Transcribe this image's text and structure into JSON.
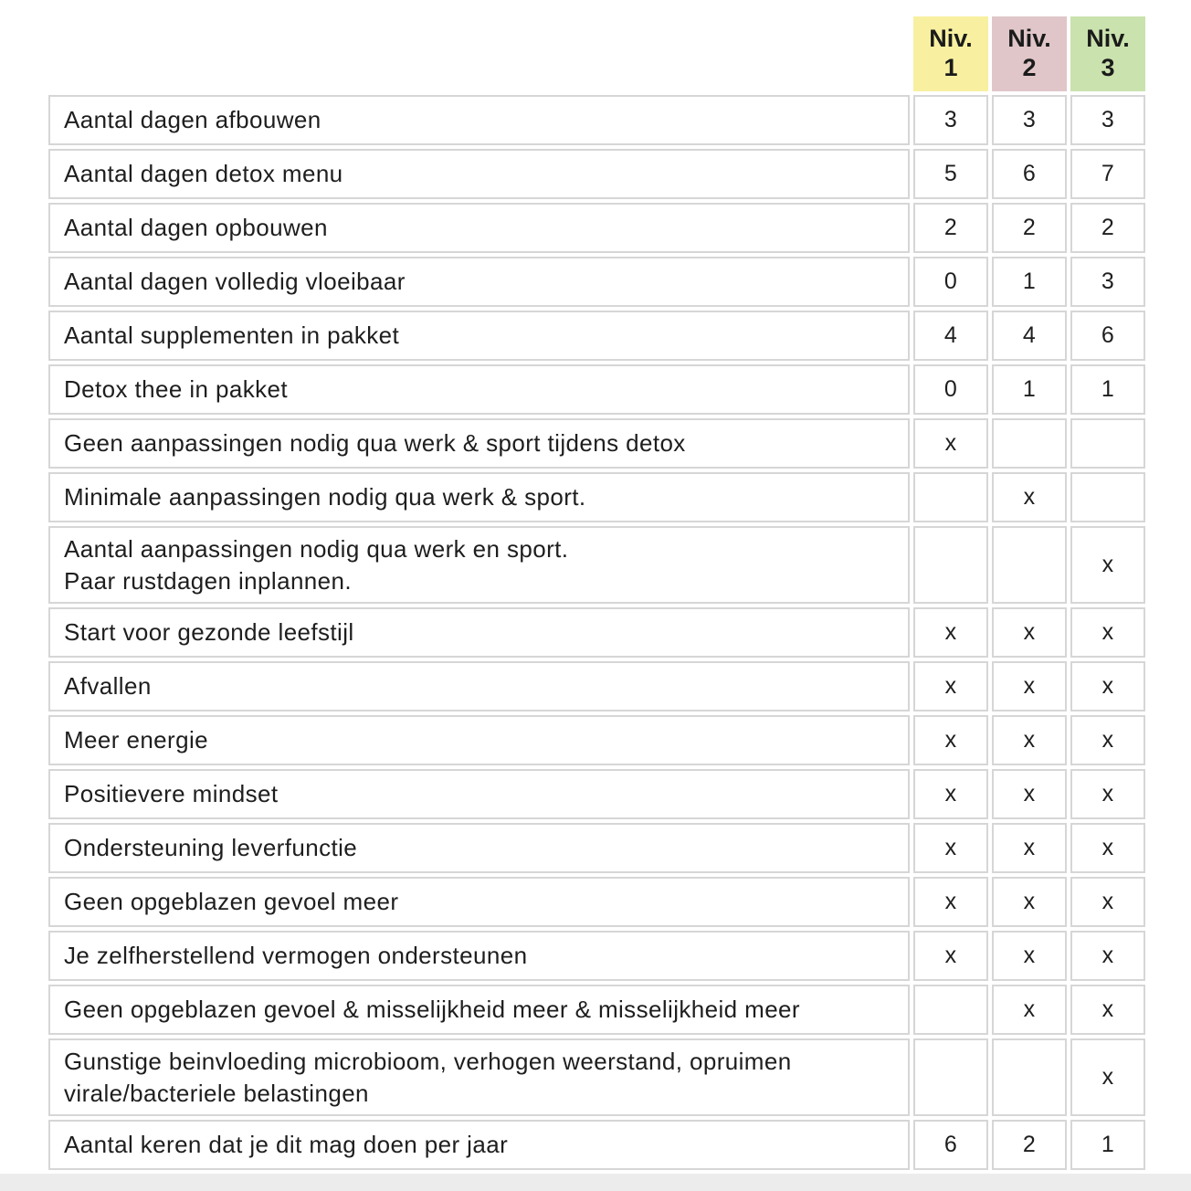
{
  "page": {
    "background_color": "#ffffff",
    "footer_bar_color": "#ececec",
    "grid_border_color": "#d6d6d6",
    "text_color": "#1e1e1e"
  },
  "table": {
    "columns": [
      {
        "label": "Niv.",
        "number": "1",
        "color": "#f8f0a0"
      },
      {
        "label": "Niv.",
        "number": "2",
        "color": "#e0c6c9"
      },
      {
        "label": "Niv.",
        "number": "3",
        "color": "#cae2ae"
      }
    ],
    "rows": [
      {
        "label": "Aantal dagen afbouwen",
        "values": [
          "3",
          "3",
          "3"
        ]
      },
      {
        "label": "Aantal dagen detox menu",
        "values": [
          "5",
          "6",
          "7"
        ]
      },
      {
        "label": "Aantal dagen opbouwen",
        "values": [
          "2",
          "2",
          "2"
        ]
      },
      {
        "label": "Aantal dagen volledig vloeibaar",
        "values": [
          "0",
          "1",
          "3"
        ]
      },
      {
        "label": "Aantal supplementen in pakket",
        "values": [
          "4",
          "4",
          "6"
        ]
      },
      {
        "label": "Detox thee in pakket",
        "values": [
          "0",
          "1",
          "1"
        ]
      },
      {
        "label": "Geen aanpassingen nodig qua werk & sport tijdens detox",
        "values": [
          "x",
          "",
          ""
        ]
      },
      {
        "label": "Minimale aanpassingen nodig qua werk & sport.",
        "values": [
          "",
          "x",
          ""
        ]
      },
      {
        "label": "Aantal aanpassingen nodig qua werk en sport.\nPaar rustdagen inplannen.",
        "values": [
          "",
          "",
          "x"
        ]
      },
      {
        "label": "Start voor gezonde leefstijl",
        "values": [
          "x",
          "x",
          "x"
        ]
      },
      {
        "label": "Afvallen",
        "values": [
          "x",
          "x",
          "x"
        ]
      },
      {
        "label": "Meer energie",
        "values": [
          "x",
          "x",
          "x"
        ]
      },
      {
        "label": "Positievere mindset",
        "values": [
          "x",
          "x",
          "x"
        ]
      },
      {
        "label": "Ondersteuning leverfunctie",
        "values": [
          "x",
          "x",
          "x"
        ]
      },
      {
        "label": "Geen opgeblazen gevoel meer",
        "values": [
          "x",
          "x",
          "x"
        ]
      },
      {
        "label": "Je zelfherstellend vermogen ondersteunen",
        "values": [
          "x",
          "x",
          "x"
        ]
      },
      {
        "label": "Geen opgeblazen gevoel & misselijkheid meer & misselijkheid meer",
        "values": [
          "",
          "x",
          "x"
        ]
      },
      {
        "label": "Gunstige beinvloeding microbioom, verhogen weerstand, opruimen\nvirale/bacteriele belastingen",
        "values": [
          "",
          "",
          "x"
        ]
      },
      {
        "label": "Aantal keren dat je dit mag doen per jaar",
        "values": [
          "6",
          "2",
          "1"
        ]
      }
    ]
  }
}
